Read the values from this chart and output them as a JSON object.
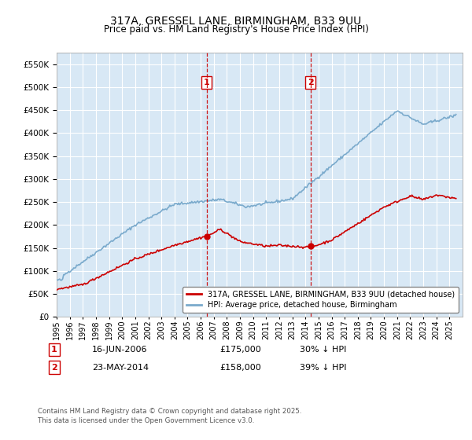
{
  "title": "317A, GRESSEL LANE, BIRMINGHAM, B33 9UU",
  "subtitle": "Price paid vs. HM Land Registry's House Price Index (HPI)",
  "legend_line1": "317A, GRESSEL LANE, BIRMINGHAM, B33 9UU (detached house)",
  "legend_line2": "HPI: Average price, detached house, Birmingham",
  "footnote": "Contains HM Land Registry data © Crown copyright and database right 2025.\nThis data is licensed under the Open Government Licence v3.0.",
  "sale1_label": "1",
  "sale1_date": "16-JUN-2006",
  "sale1_price": "£175,000",
  "sale1_hpi": "30% ↓ HPI",
  "sale1_year": 2006.46,
  "sale1_value": 175000,
  "sale2_label": "2",
  "sale2_date": "23-MAY-2014",
  "sale2_price": "£158,000",
  "sale2_hpi": "39% ↓ HPI",
  "sale2_year": 2014.39,
  "sale2_value": 158000,
  "red_color": "#cc0000",
  "blue_color": "#7aaacc",
  "dashed_vline_color": "#cc0000",
  "plot_bg_color": "#d8e8f5",
  "grid_color": "#ffffff",
  "ylim": [
    0,
    575000
  ],
  "yticks": [
    0,
    50000,
    100000,
    150000,
    200000,
    250000,
    300000,
    350000,
    400000,
    450000,
    500000,
    550000
  ],
  "xmin": 1995,
  "xmax": 2026
}
